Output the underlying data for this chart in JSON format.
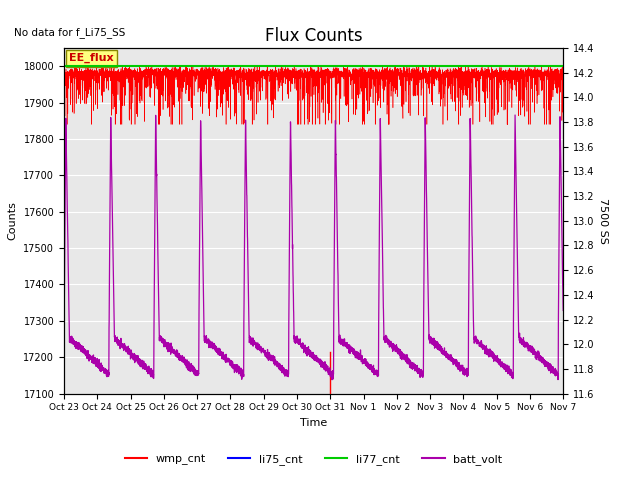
{
  "title": "Flux Counts",
  "title_fontsize": 12,
  "no_data_text": "No data for f_Li75_SS",
  "xlabel": "Time",
  "ylabel_left": "Counts",
  "ylabel_right": "7500 SS",
  "ylim_left": [
    17100,
    18050
  ],
  "ylim_right": [
    11.6,
    14.4
  ],
  "yticks_left": [
    17100,
    17200,
    17300,
    17400,
    17500,
    17600,
    17700,
    17800,
    17900,
    18000
  ],
  "yticks_right": [
    11.6,
    11.8,
    12.0,
    12.2,
    12.4,
    12.6,
    12.8,
    13.0,
    13.2,
    13.4,
    13.6,
    13.8,
    14.0,
    14.2,
    14.4
  ],
  "xtick_labels": [
    "Oct 23",
    "Oct 24",
    "Oct 25",
    "Oct 26",
    "Oct 27",
    "Oct 28",
    "Oct 29",
    "Oct 30",
    "Oct 31",
    "Nov 1",
    "Nov 2",
    "Nov 3",
    "Nov 4",
    "Nov 5",
    "Nov 6",
    "Nov 7"
  ],
  "bg_color": "#e8e8e8",
  "wmp_color": "#ff0000",
  "li75_color": "#0000ff",
  "li77_color": "#00cc00",
  "batt_color": "#aa00aa",
  "vline_color": "#ff0000",
  "ee_flux_box_color": "#ffff80",
  "ee_flux_text_color": "#cc0000",
  "legend_items": [
    "wmp_cnt",
    "li75_cnt",
    "li77_cnt",
    "batt_volt"
  ],
  "legend_colors": [
    "#ff0000",
    "#0000ff",
    "#00cc00",
    "#aa00aa"
  ],
  "n_points": 5000,
  "period_days": 1.35,
  "total_days": 15,
  "wmp_base": 17980,
  "wmp_min": 17840,
  "wmp_max": 18000,
  "batt_peak": 13.85,
  "batt_trough": 11.75,
  "batt_noise": 0.015,
  "oct31_day": 8.0
}
